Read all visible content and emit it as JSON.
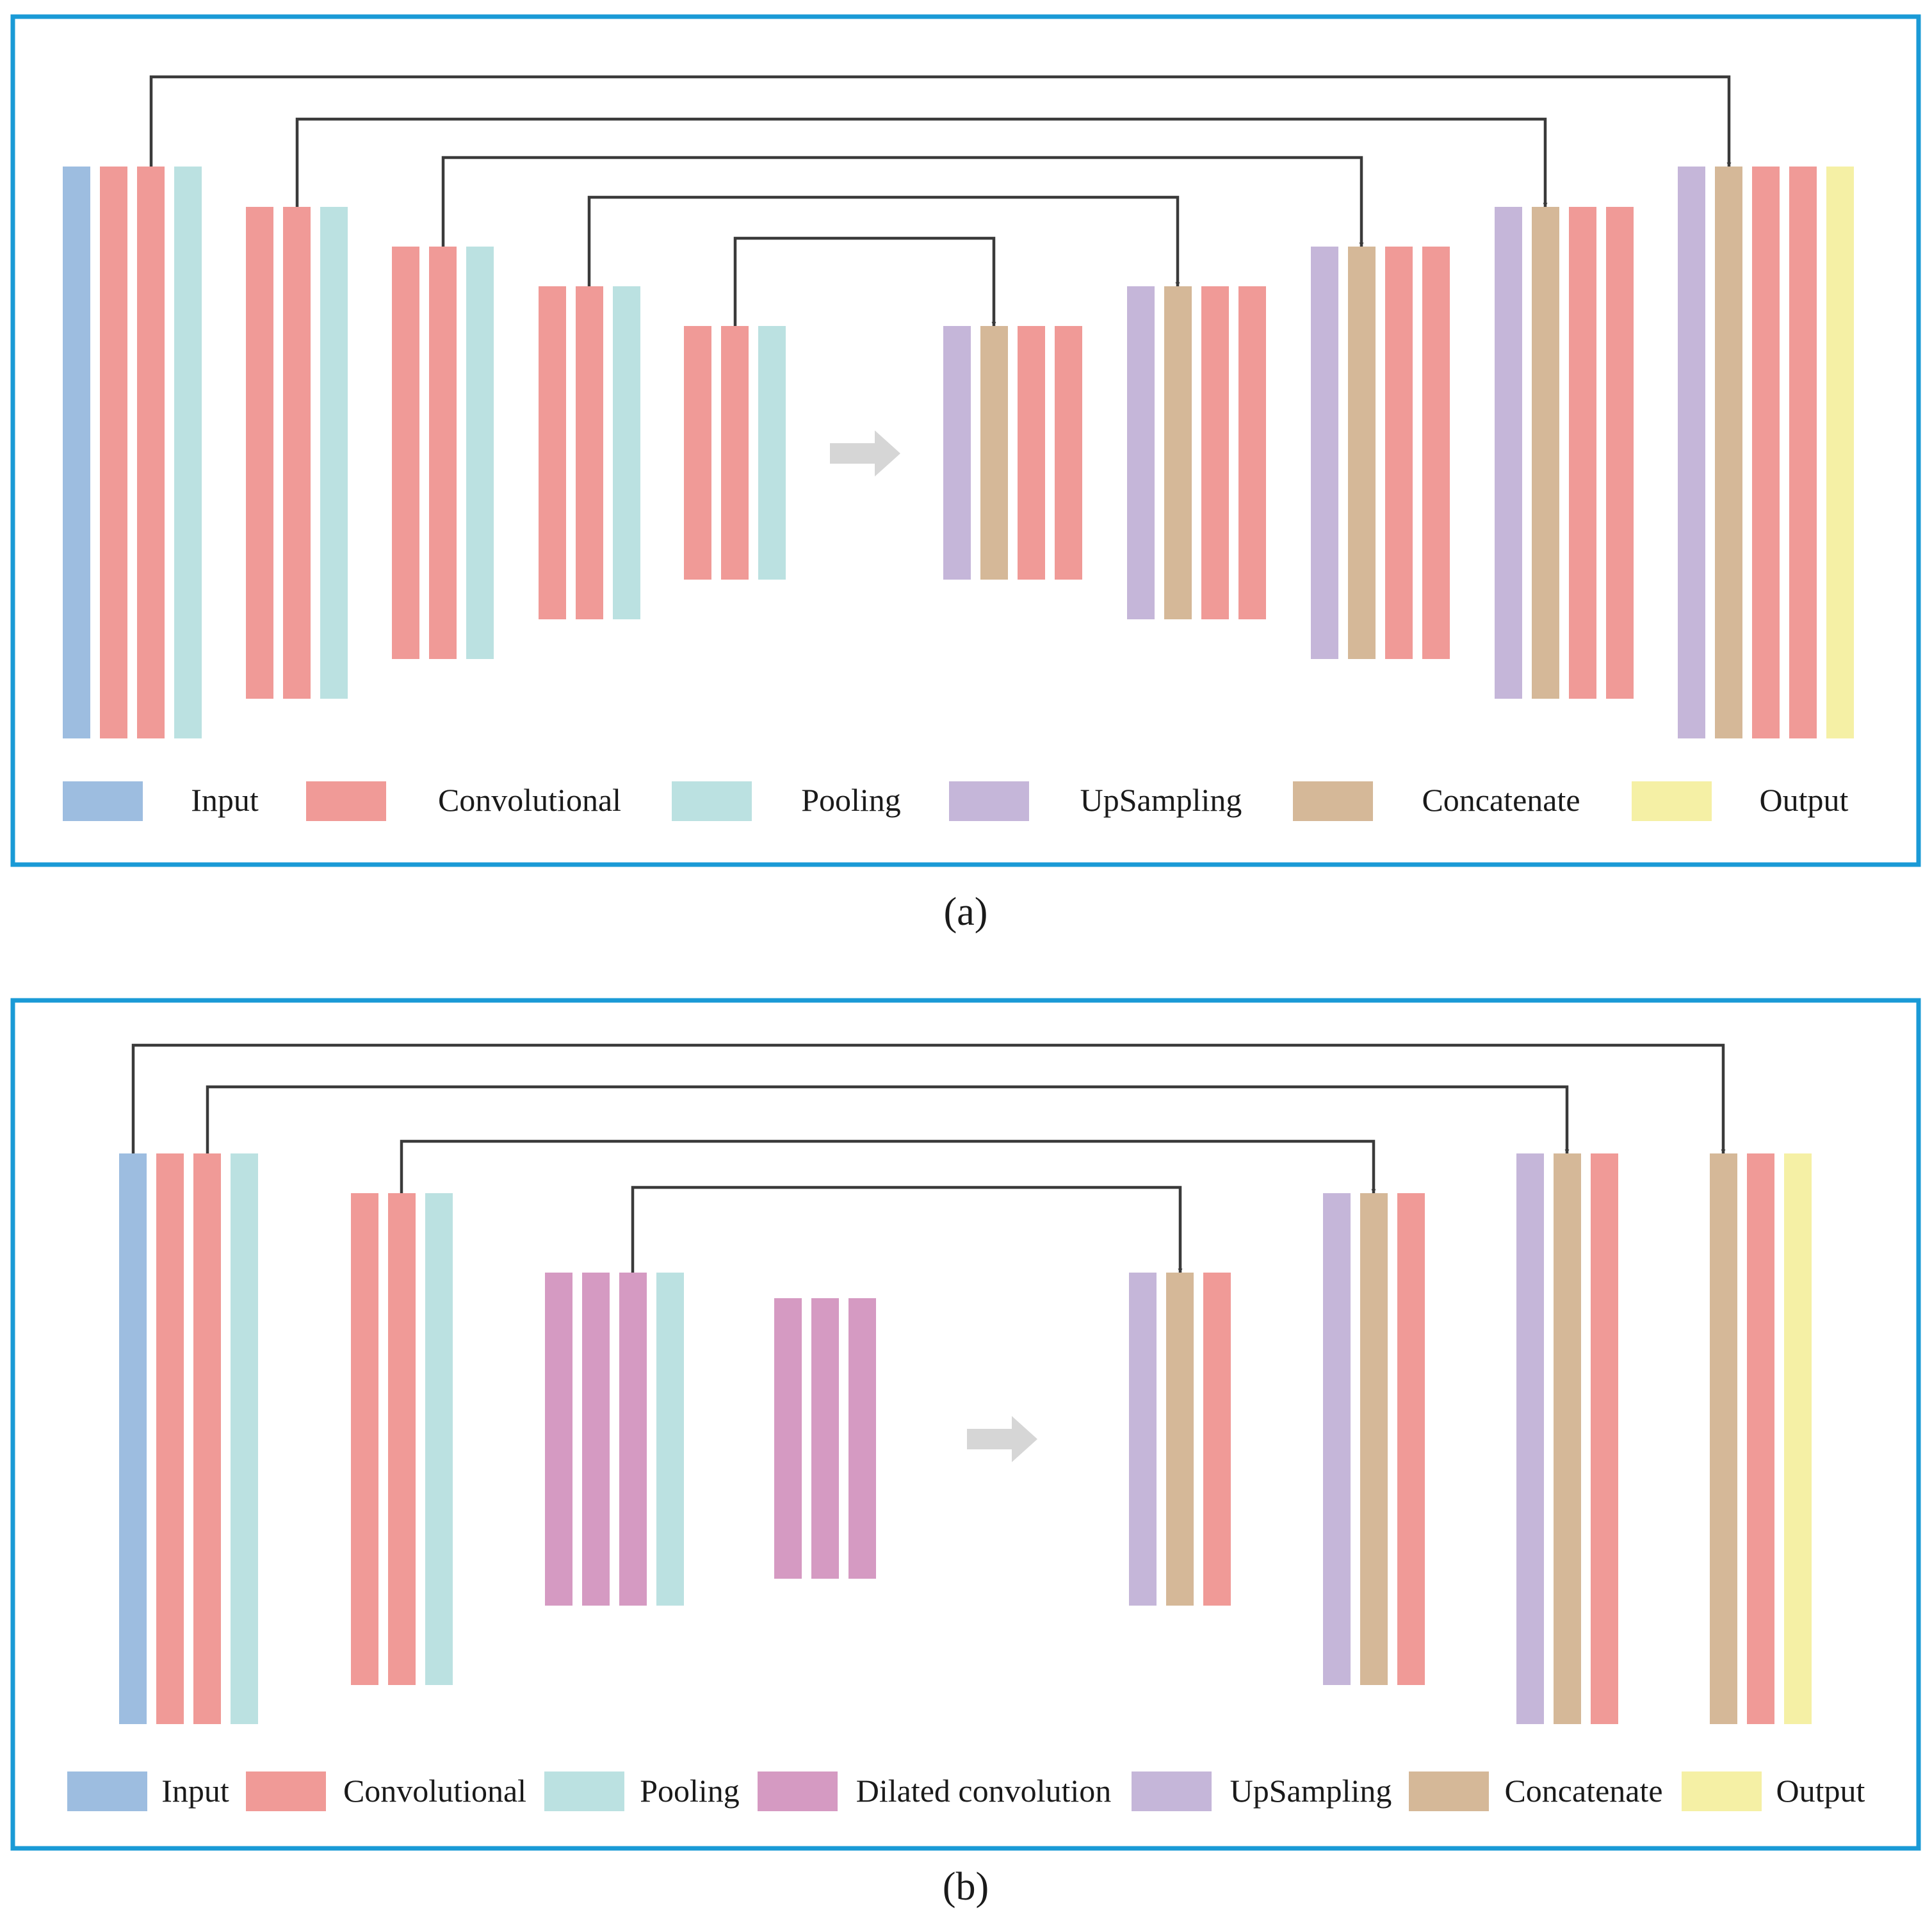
{
  "colors": {
    "input": "#9dbde0",
    "conv": "#f09a97",
    "pool": "#bbe1e1",
    "up": "#c5b6d9",
    "concat": "#d5b898",
    "output": "#f5f0a5",
    "dilated": "#d59ac2",
    "frame": "#1a9ad6",
    "arrow": "#3a3a3a",
    "flow_arrow": "#d6d6d6"
  },
  "panel_a": {
    "caption": "(a)",
    "legend": [
      {
        "key": "input",
        "label": "Input"
      },
      {
        "key": "conv",
        "label": "Convolutional"
      },
      {
        "key": "pool",
        "label": "Pooling"
      },
      {
        "key": "up",
        "label": "UpSampling"
      },
      {
        "key": "concat",
        "label": "Concatenate"
      },
      {
        "key": "output",
        "label": "Output"
      }
    ]
  },
  "panel_b": {
    "caption": "(b)",
    "legend": [
      {
        "key": "input",
        "label": "Input"
      },
      {
        "key": "conv",
        "label": "Convolutional"
      },
      {
        "key": "pool",
        "label": "Pooling"
      },
      {
        "key": "dilated",
        "label": "Dilated convolution"
      },
      {
        "key": "up",
        "label": "UpSampling"
      },
      {
        "key": "concat",
        "label": "Concatenate"
      },
      {
        "key": "output",
        "label": "Output"
      }
    ]
  }
}
